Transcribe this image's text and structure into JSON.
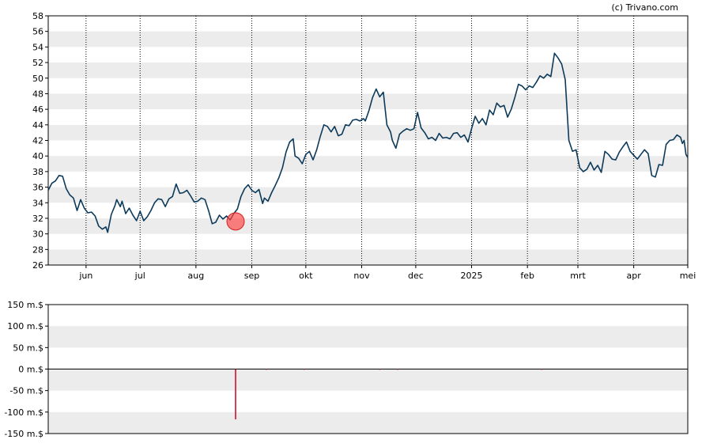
{
  "copyright": "(c) Trivano.com",
  "chart_data": [
    {
      "type": "line",
      "title": "",
      "xlabel": "",
      "ylabel": "",
      "ylim": [
        26,
        58
      ],
      "yticks": [
        "26",
        "28",
        "30",
        "32",
        "34",
        "36",
        "38",
        "40",
        "42",
        "44",
        "46",
        "48",
        "50",
        "52",
        "54",
        "56",
        "58"
      ],
      "month_ticks": [
        {
          "label": "jun",
          "day": 21
        },
        {
          "label": "jul",
          "day": 51
        },
        {
          "label": "aug",
          "day": 82
        },
        {
          "label": "sep",
          "day": 113
        },
        {
          "label": "okt",
          "day": 143
        },
        {
          "label": "nov",
          "day": 174
        },
        {
          "label": "dec",
          "day": 204
        },
        {
          "label": "2025",
          "day": 235
        },
        {
          "label": "feb",
          "day": 266
        },
        {
          "label": "mrt",
          "day": 294
        },
        {
          "label": "apr",
          "day": 325
        },
        {
          "label": "mei",
          "day": 355
        }
      ],
      "xlim": [
        0,
        355
      ],
      "series": [
        {
          "color": "#0d3a5a",
          "points": [
            [
              0,
              35.6
            ],
            [
              2,
              36.5
            ],
            [
              4,
              36.8
            ],
            [
              6,
              37.5
            ],
            [
              8,
              37.4
            ],
            [
              10,
              35.8
            ],
            [
              12,
              35.0
            ],
            [
              14,
              34.6
            ],
            [
              16,
              33.0
            ],
            [
              18,
              34.4
            ],
            [
              20,
              33.3
            ],
            [
              22,
              32.7
            ],
            [
              24,
              32.8
            ],
            [
              26,
              32.3
            ],
            [
              28,
              31.0
            ],
            [
              30,
              30.6
            ],
            [
              32,
              30.9
            ],
            [
              33,
              30.2
            ],
            [
              35,
              32.5
            ],
            [
              37,
              33.6
            ],
            [
              38,
              34.4
            ],
            [
              40,
              33.5
            ],
            [
              41,
              34.2
            ],
            [
              43,
              32.6
            ],
            [
              45,
              33.3
            ],
            [
              47,
              32.4
            ],
            [
              49,
              31.7
            ],
            [
              51,
              32.9
            ],
            [
              53,
              31.7
            ],
            [
              55,
              32.2
            ],
            [
              57,
              33.0
            ],
            [
              59,
              34.0
            ],
            [
              61,
              34.5
            ],
            [
              63,
              34.4
            ],
            [
              65,
              33.5
            ],
            [
              67,
              34.5
            ],
            [
              69,
              34.8
            ],
            [
              71,
              36.4
            ],
            [
              73,
              35.2
            ],
            [
              75,
              35.3
            ],
            [
              77,
              35.6
            ],
            [
              79,
              34.9
            ],
            [
              81,
              34.1
            ],
            [
              83,
              34.2
            ],
            [
              85,
              34.6
            ],
            [
              87,
              34.4
            ],
            [
              89,
              33.0
            ],
            [
              91,
              31.3
            ],
            [
              93,
              31.5
            ],
            [
              95,
              32.4
            ],
            [
              97,
              31.9
            ],
            [
              99,
              32.3
            ],
            [
              101,
              31.8
            ],
            [
              103,
              32.6
            ],
            [
              105,
              33.2
            ],
            [
              107,
              34.8
            ],
            [
              109,
              35.8
            ],
            [
              111,
              36.3
            ],
            [
              113,
              35.6
            ],
            [
              115,
              35.3
            ],
            [
              117,
              35.7
            ],
            [
              119,
              33.9
            ],
            [
              120,
              34.6
            ],
            [
              122,
              34.2
            ],
            [
              124,
              35.3
            ],
            [
              126,
              36.2
            ],
            [
              128,
              37.2
            ],
            [
              130,
              38.5
            ],
            [
              132,
              40.5
            ],
            [
              134,
              41.8
            ],
            [
              136,
              42.2
            ],
            [
              137,
              40.0
            ],
            [
              139,
              39.7
            ],
            [
              141,
              39.0
            ],
            [
              143,
              40.2
            ],
            [
              145,
              40.6
            ],
            [
              147,
              39.5
            ],
            [
              149,
              40.8
            ],
            [
              151,
              42.5
            ],
            [
              153,
              44.0
            ],
            [
              155,
              43.8
            ],
            [
              157,
              43.1
            ],
            [
              159,
              43.8
            ],
            [
              161,
              42.6
            ],
            [
              163,
              42.8
            ],
            [
              165,
              44.0
            ],
            [
              167,
              43.9
            ],
            [
              169,
              44.6
            ],
            [
              171,
              44.7
            ],
            [
              173,
              44.5
            ],
            [
              175,
              44.8
            ],
            [
              176,
              44.5
            ],
            [
              178,
              45.8
            ],
            [
              180,
              47.5
            ],
            [
              182,
              48.6
            ],
            [
              184,
              47.6
            ],
            [
              186,
              48.2
            ],
            [
              188,
              44.0
            ],
            [
              190,
              43.1
            ],
            [
              191,
              42.0
            ],
            [
              193,
              41.0
            ],
            [
              195,
              42.8
            ],
            [
              197,
              43.2
            ],
            [
              199,
              43.5
            ],
            [
              201,
              43.3
            ],
            [
              203,
              43.5
            ],
            [
              205,
              45.6
            ],
            [
              207,
              43.6
            ],
            [
              209,
              43.0
            ],
            [
              211,
              42.2
            ],
            [
              213,
              42.4
            ],
            [
              215,
              42.0
            ],
            [
              217,
              42.9
            ],
            [
              219,
              42.3
            ],
            [
              221,
              42.4
            ],
            [
              223,
              42.2
            ],
            [
              225,
              42.9
            ],
            [
              227,
              43.0
            ],
            [
              229,
              42.4
            ],
            [
              231,
              42.7
            ],
            [
              233,
              41.8
            ],
            [
              235,
              43.5
            ],
            [
              237,
              45.1
            ],
            [
              239,
              44.2
            ],
            [
              241,
              44.8
            ],
            [
              243,
              44.0
            ],
            [
              245,
              45.9
            ],
            [
              247,
              45.3
            ],
            [
              249,
              46.8
            ],
            [
              251,
              46.3
            ],
            [
              253,
              46.5
            ],
            [
              255,
              45.0
            ],
            [
              257,
              46.0
            ],
            [
              259,
              47.5
            ],
            [
              261,
              49.2
            ],
            [
              263,
              49.0
            ],
            [
              265,
              48.5
            ],
            [
              267,
              49.0
            ],
            [
              269,
              48.8
            ],
            [
              271,
              49.5
            ],
            [
              273,
              50.3
            ],
            [
              275,
              50.0
            ],
            [
              277,
              50.5
            ],
            [
              279,
              50.2
            ],
            [
              281,
              53.2
            ],
            [
              283,
              52.6
            ],
            [
              285,
              51.8
            ],
            [
              287,
              49.8
            ],
            [
              289,
              42.0
            ],
            [
              291,
              40.6
            ],
            [
              293,
              40.8
            ],
            [
              295,
              38.5
            ],
            [
              297,
              38.0
            ],
            [
              299,
              38.3
            ],
            [
              301,
              39.2
            ],
            [
              303,
              38.2
            ],
            [
              305,
              38.8
            ],
            [
              307,
              37.9
            ],
            [
              309,
              40.6
            ],
            [
              311,
              40.2
            ],
            [
              313,
              39.6
            ],
            [
              315,
              39.5
            ],
            [
              317,
              40.5
            ],
            [
              319,
              41.2
            ],
            [
              321,
              41.8
            ],
            [
              323,
              40.6
            ],
            [
              325,
              40.1
            ],
            [
              327,
              39.6
            ],
            [
              329,
              40.2
            ],
            [
              331,
              40.8
            ],
            [
              333,
              40.3
            ],
            [
              335,
              37.5
            ],
            [
              337,
              37.3
            ],
            [
              339,
              38.9
            ],
            [
              341,
              38.8
            ],
            [
              343,
              41.5
            ],
            [
              345,
              42.0
            ],
            [
              347,
              42.1
            ],
            [
              349,
              42.7
            ],
            [
              351,
              42.4
            ],
            [
              352,
              41.6
            ],
            [
              353,
              42.0
            ],
            [
              354,
              40.2
            ],
            [
              355,
              39.8
            ]
          ]
        }
      ],
      "markers": [
        {
          "day": 104,
          "value": 31.6,
          "color": "#ff4040"
        }
      ]
    },
    {
      "type": "bar",
      "title": "",
      "xlabel": "",
      "ylabel": "",
      "ylim": [
        -150,
        150
      ],
      "yticks": [
        "150 m.$",
        "100 m.$",
        "50 m.$",
        "0 m.$",
        "-50 m.$",
        "-100 m.$",
        "-150 m.$"
      ],
      "xlim": [
        0,
        355
      ],
      "bar_color": "#cc0022",
      "bars": [
        {
          "day": 104,
          "value": -117
        },
        {
          "day": 121,
          "value": -1.5
        },
        {
          "day": 142,
          "value": -1.5
        },
        {
          "day": 184,
          "value": -1.5
        },
        {
          "day": 194,
          "value": -1.5
        },
        {
          "day": 274,
          "value": -1.5
        }
      ]
    }
  ]
}
